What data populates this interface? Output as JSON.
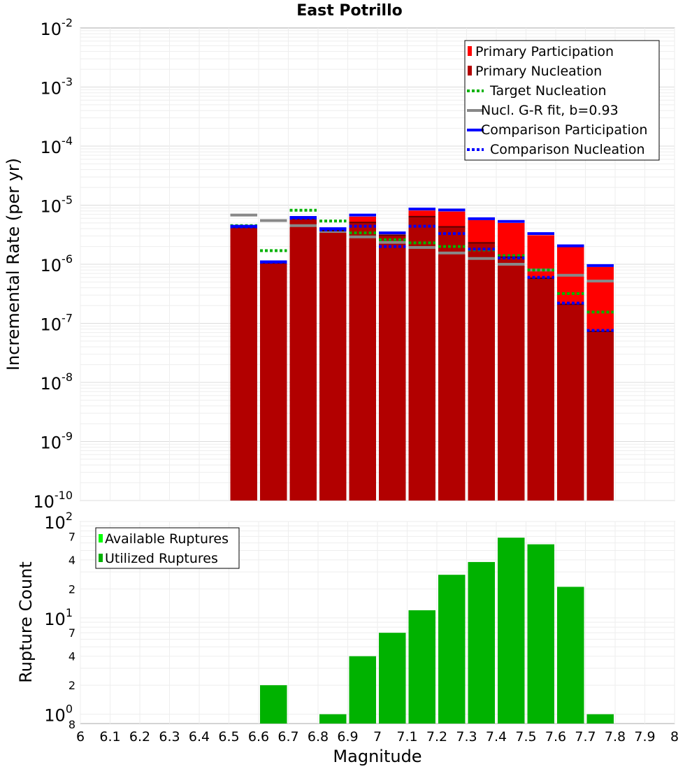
{
  "chart_data": [
    {
      "type": "bar",
      "title": "East Potrillo",
      "xlabel": "",
      "ylabel": "Incremental Rate (per yr)",
      "y_scale": "log",
      "ylim": [
        1e-10,
        0.01
      ],
      "xlim": [
        6,
        8
      ],
      "y_tick_bases": [
        "10",
        "10",
        "10",
        "10",
        "10",
        "10",
        "10",
        "10",
        "10"
      ],
      "y_tick_exponents": [
        "-10",
        "-9",
        "-8",
        "-7",
        "-6",
        "-5",
        "-4",
        "-3",
        "-2"
      ],
      "grid": true,
      "legend_position": "top-right",
      "legend": [
        {
          "label": "Primary Participation",
          "color": "#ff0000",
          "style": "bar"
        },
        {
          "label": "Primary Nucleation",
          "color": "#b20000",
          "style": "bar"
        },
        {
          "label": "Target Nucleation",
          "color": "#00b200",
          "style": "dotted"
        },
        {
          "label": "Nucl. G-R fit, b=0.93",
          "color": "#888888",
          "style": "solid"
        },
        {
          "label": "Comparison Participation",
          "color": "#0000ff",
          "style": "solid"
        },
        {
          "label": "Comparison Nucleation",
          "color": "#0000ff",
          "style": "dotted"
        }
      ],
      "bin_starts": [
        6.5,
        6.6,
        6.7,
        6.8,
        6.9,
        7.0,
        7.1,
        7.2,
        7.3,
        7.4,
        7.5,
        7.6,
        7.7
      ],
      "series": [
        {
          "name": "Primary Participation",
          "values": [
            4.2e-06,
            1.05e-06,
            6e-06,
            3.8e-06,
            6.4e-06,
            3.2e-06,
            8.1e-06,
            7.8e-06,
            5.6e-06,
            5e-06,
            3.1e-06,
            1.95e-06,
            9e-07
          ]
        },
        {
          "name": "Primary Nucleation",
          "values": [
            4.2e-06,
            1.05e-06,
            5.9e-06,
            3.7e-06,
            5.1e-06,
            3.1e-06,
            6.4e-06,
            4.3e-06,
            2.3e-06,
            1.32e-06,
            5.8e-07,
            2.1e-07,
            7.3e-08
          ]
        },
        {
          "name": "Target Nucleation",
          "values": [
            4.5e-06,
            1.7e-06,
            8.2e-06,
            5.4e-06,
            3.4e-06,
            2.6e-06,
            2.3e-06,
            2e-06,
            1.75e-06,
            1.4e-06,
            8e-07,
            3.2e-07,
            1.55e-07
          ]
        },
        {
          "name": "Nucl. G-R fit, b=0.93",
          "values": [
            6.8e-06,
            5.5e-06,
            4.5e-06,
            3.6e-06,
            2.9e-06,
            2.35e-06,
            1.92e-06,
            1.55e-06,
            1.25e-06,
            1e-06,
            8e-07,
            6.5e-07,
            5.2e-07
          ]
        },
        {
          "name": "Comparison Participation",
          "values": [
            4.4e-06,
            1.1e-06,
            6.2e-06,
            4e-06,
            6.8e-06,
            3.4e-06,
            8.6e-06,
            8.3e-06,
            5.9e-06,
            5.3e-06,
            3.3e-06,
            2.05e-06,
            9.5e-07
          ]
        },
        {
          "name": "Comparison Nucleation",
          "values": [
            4.3e-06,
            1.08e-06,
            6e-06,
            3.8e-06,
            4.4e-06,
            2e-06,
            4.4e-06,
            3.3e-06,
            1.8e-06,
            1.28e-06,
            6e-07,
            2.2e-07,
            7.6e-08
          ]
        }
      ]
    },
    {
      "type": "bar",
      "title": "",
      "xlabel": "Magnitude",
      "ylabel": "Rupture Count",
      "y_scale": "log",
      "ylim": [
        0.8,
        100
      ],
      "xlim": [
        6,
        8
      ],
      "x_ticks": [
        "6",
        "6.1",
        "6.2",
        "6.3",
        "6.4",
        "6.5",
        "6.6",
        "6.7",
        "6.8",
        "6.9",
        "7",
        "7.1",
        "7.2",
        "7.3",
        "7.4",
        "7.5",
        "7.6",
        "7.7",
        "7.8",
        "7.9",
        "8"
      ],
      "y_major_ticks": [
        {
          "value": 1,
          "base": "10",
          "exp": "0"
        },
        {
          "value": 10,
          "base": "10",
          "exp": "1"
        },
        {
          "value": 100,
          "base": "10",
          "exp": "2"
        }
      ],
      "y_minor_labels": [
        {
          "value": 2,
          "label": "2"
        },
        {
          "value": 4,
          "label": "4"
        },
        {
          "value": 7,
          "label": "7"
        },
        {
          "value": 20,
          "label": "2"
        },
        {
          "value": 40,
          "label": "4"
        },
        {
          "value": 70,
          "label": "7"
        }
      ],
      "y_bottom_label": "8",
      "grid": true,
      "legend_position": "top-left",
      "legend": [
        {
          "label": "Available Ruptures",
          "color": "#00ff00"
        },
        {
          "label": "Utilized Ruptures",
          "color": "#00b200"
        }
      ],
      "bin_starts": [
        6.6,
        6.8,
        6.9,
        7.0,
        7.1,
        7.2,
        7.3,
        7.4,
        7.5,
        7.6,
        7.7
      ],
      "series": [
        {
          "name": "Utilized Ruptures",
          "values": [
            2,
            1,
            4,
            7,
            12,
            28,
            38,
            68,
            58,
            21,
            1
          ]
        }
      ]
    }
  ]
}
